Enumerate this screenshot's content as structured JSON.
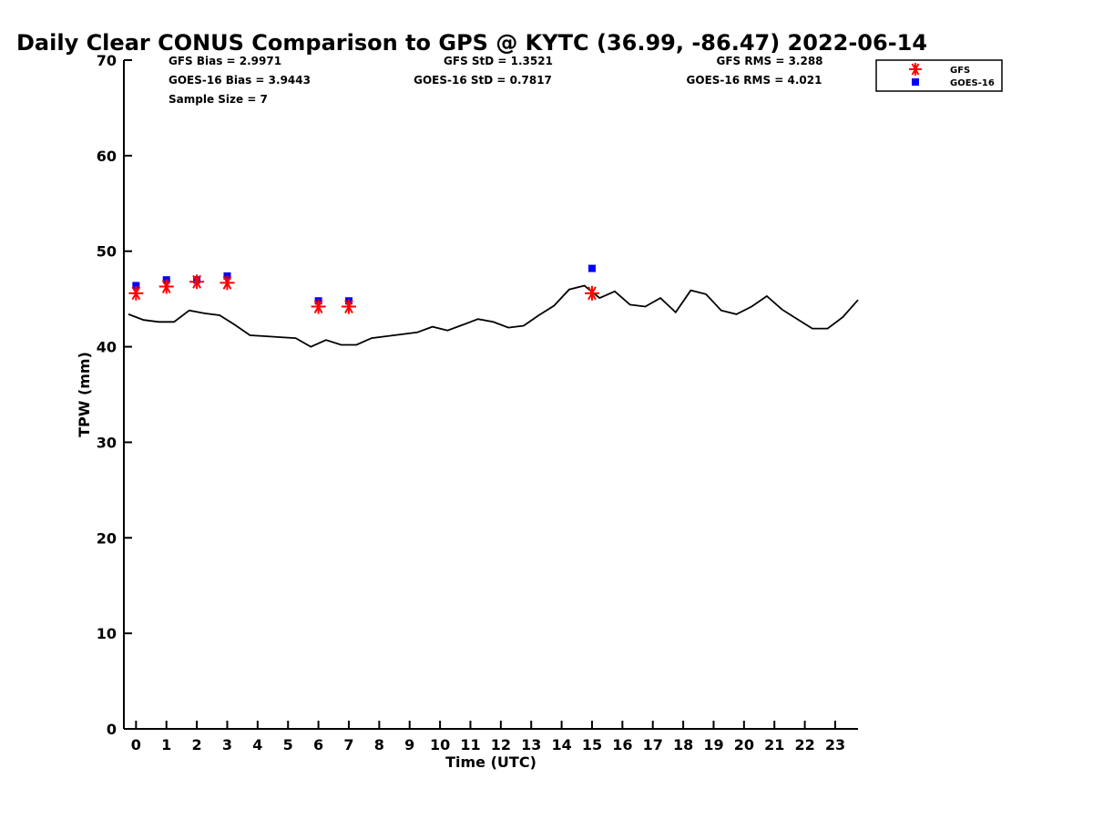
{
  "chart_data": {
    "type": "line",
    "title": "Daily Clear CONUS Comparison to GPS @ KYTC (36.99, -86.47) 2022-06-14",
    "xlabel": "Time (UTC)",
    "ylabel": "TPW (mm)",
    "xlim": [
      -0.4,
      23.75
    ],
    "ylim": [
      0,
      70
    ],
    "x_ticks": [
      0,
      1,
      2,
      3,
      4,
      5,
      6,
      7,
      8,
      9,
      10,
      11,
      12,
      13,
      14,
      15,
      16,
      17,
      18,
      19,
      20,
      21,
      22,
      23
    ],
    "y_ticks": [
      0,
      10,
      20,
      30,
      40,
      50,
      60,
      70
    ],
    "grid": false,
    "legend_position": "top-right",
    "stats": {
      "gfs_bias": "GFS Bias = 2.9971",
      "goes_bias": "GOES-16 Bias = 3.9443",
      "sample_size": "Sample Size = 7",
      "gfs_std": "GFS StD = 1.3521",
      "goes_std": "GOES-16 StD = 0.7817",
      "gfs_rms": "GFS RMS = 3.288",
      "goes_rms": "GOES-16 RMS = 4.021"
    },
    "gps_line": {
      "color": "#000000",
      "x": [
        -0.25,
        0.25,
        0.75,
        1.25,
        1.75,
        2.25,
        2.75,
        3.25,
        3.75,
        4.25,
        4.75,
        5.25,
        5.75,
        6.25,
        6.75,
        7.25,
        7.75,
        8.25,
        8.75,
        9.25,
        9.75,
        10.25,
        10.75,
        11.25,
        11.75,
        12.25,
        12.75,
        13.25,
        13.75,
        14.25,
        14.75,
        15.25,
        15.75,
        16.25,
        16.75,
        17.25,
        17.75,
        18.25,
        18.75,
        19.25,
        19.75,
        20.25,
        20.75,
        21.25,
        21.75,
        22.25,
        22.75,
        23.25,
        23.75
      ],
      "y": [
        43.4,
        42.8,
        42.6,
        42.6,
        43.8,
        43.5,
        43.3,
        42.3,
        41.2,
        41.1,
        41.0,
        40.9,
        40.0,
        40.7,
        40.2,
        40.2,
        40.9,
        41.1,
        41.3,
        41.5,
        42.1,
        41.7,
        42.3,
        42.9,
        42.6,
        42.0,
        42.2,
        43.3,
        44.3,
        46.0,
        46.4,
        45.1,
        45.8,
        44.4,
        44.2,
        45.1,
        43.6,
        45.9,
        45.5,
        43.8,
        43.4,
        44.2,
        45.3,
        43.9,
        42.9,
        41.9,
        41.9,
        43.1,
        44.9
      ]
    },
    "series": [
      {
        "name": "GFS",
        "marker": "asterisk",
        "color": "#ff0000",
        "x": [
          0,
          1,
          2,
          3,
          6,
          7,
          15
        ],
        "y": [
          45.6,
          46.3,
          46.8,
          46.7,
          44.2,
          44.2,
          45.6
        ]
      },
      {
        "name": "GOES-16",
        "marker": "square",
        "color": "#0000ff",
        "x": [
          0,
          1,
          2,
          3,
          6,
          7,
          15
        ],
        "y": [
          46.4,
          47.0,
          47.0,
          47.4,
          44.8,
          44.8,
          48.2
        ]
      }
    ]
  }
}
